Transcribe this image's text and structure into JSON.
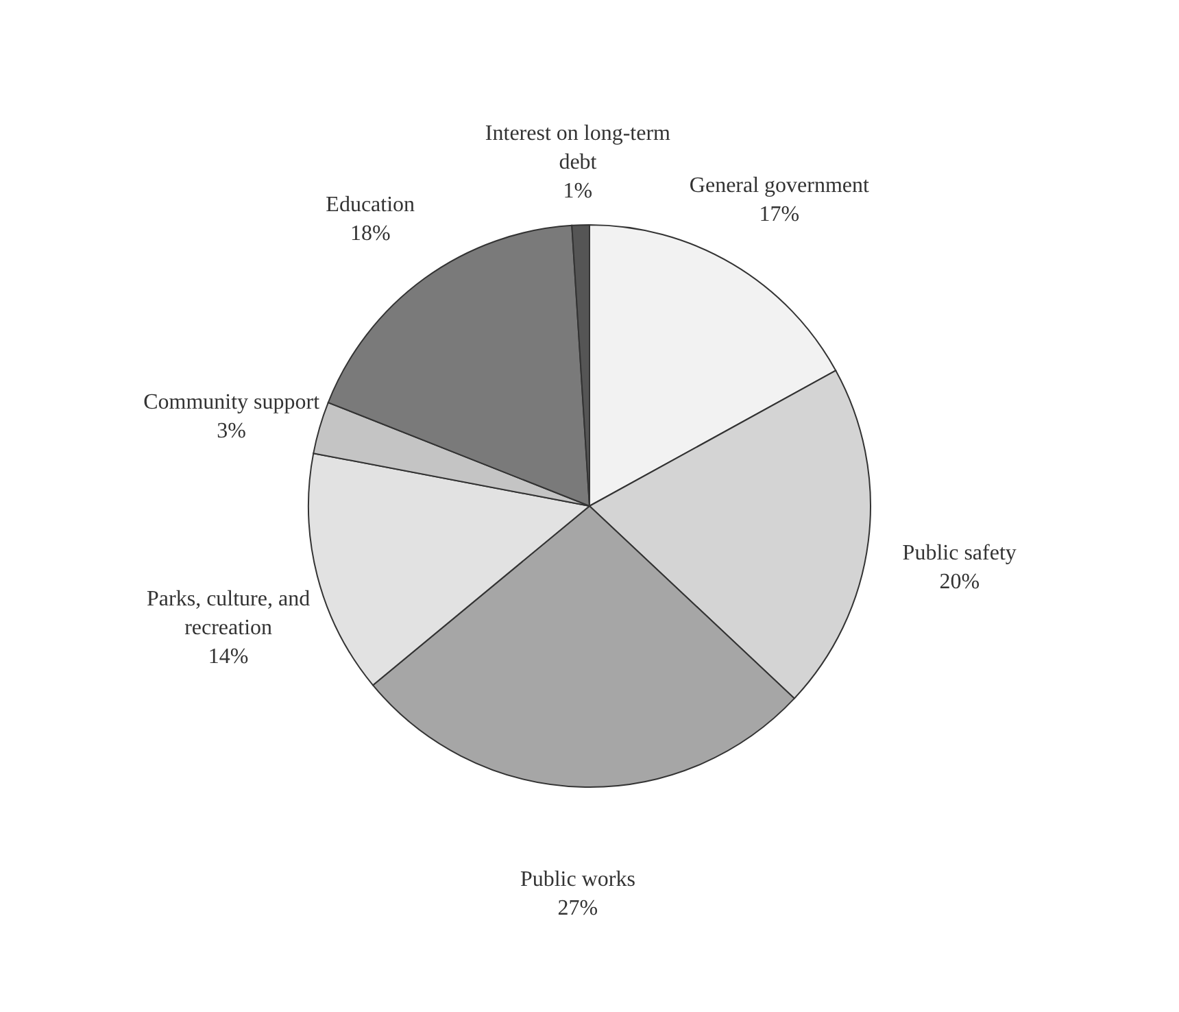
{
  "chart_data": {
    "type": "pie",
    "categories": [
      "General government",
      "Public safety",
      "Public works",
      "Parks, culture, and recreation",
      "Community support",
      "Education",
      "Interest on long-term debt"
    ],
    "values": [
      17,
      20,
      27,
      14,
      3,
      18,
      1
    ],
    "value_labels": [
      "17%",
      "20%",
      "27%",
      "14%",
      "3%",
      "18%",
      "1%"
    ],
    "colors": [
      "#f2f2f2",
      "#d4d4d4",
      "#a6a6a6",
      "#e2e2e2",
      "#c4c4c4",
      "#7a7a7a",
      "#555555"
    ]
  }
}
